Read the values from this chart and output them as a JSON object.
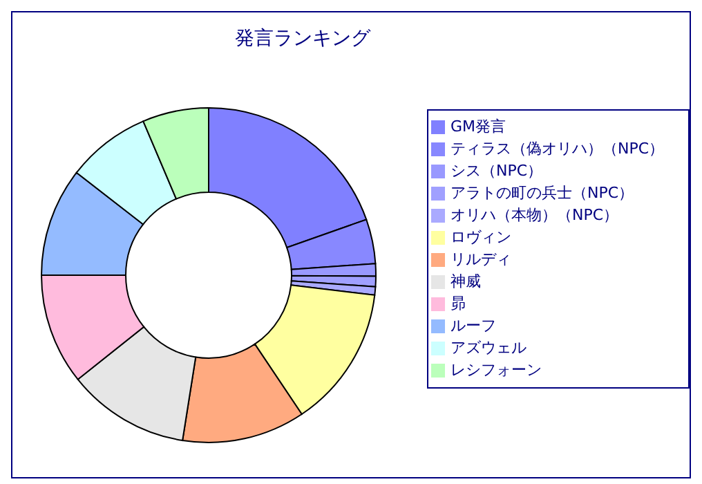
{
  "chart_data": {
    "type": "donut",
    "title": "発言ランキング",
    "categories": [
      "GM発言",
      "ティラス（偽オリハ）（NPC）",
      "シス（NPC）",
      "アラトの町の兵士（NPC）",
      "オリハ（本物）（NPC）",
      "ロヴィン",
      "リルディ",
      "神威",
      "昴",
      "ルーフ",
      "アズウェル",
      "レシフォーン"
    ],
    "values": [
      19.6,
      4.3,
      1.2,
      1.0,
      0.8,
      13.7,
      11.9,
      11.8,
      10.7,
      10.5,
      8.1,
      6.4
    ],
    "colors": [
      "#8080ff",
      "#8888ff",
      "#9999ff",
      "#a0a0ff",
      "#aaaaff",
      "#ffffa0",
      "#ffaa80",
      "#e6e6e6",
      "#ffbbdd",
      "#94bbff",
      "#ccffff",
      "#bbffbb"
    ],
    "legend": "right"
  }
}
